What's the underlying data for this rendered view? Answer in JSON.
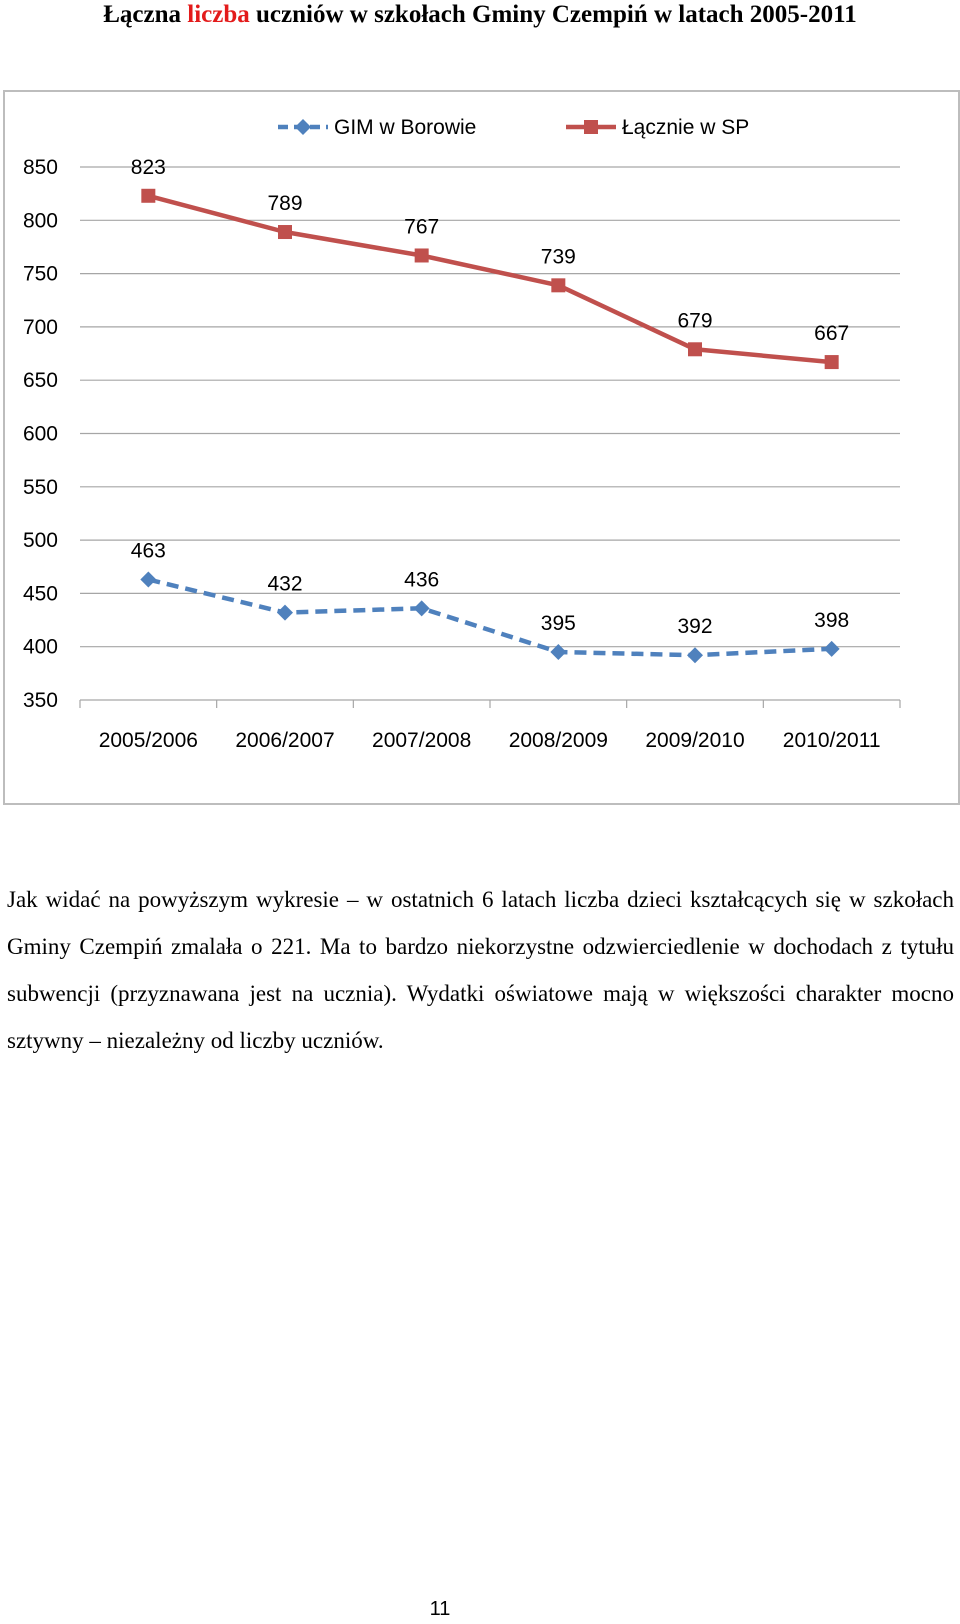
{
  "document": {
    "title_parts": [
      "Łączna ",
      "liczba",
      " uczniów w szkołach Gminy Czempiń w latach 2005-2011"
    ],
    "highlight_color": "#e31b1b",
    "paragraph": "Jak widać na powyższym wykresie – w ostatnich 6 latach liczba dzieci kształcących się w szkołach Gminy Czempiń zmalała o 221. Ma to bardzo niekorzystne odzwierciedlenie w dochodach z tytułu subwencji (przyznawana jest na ucznia). Wydatki oświatowe mają w większości charakter mocno sztywny – niezależny od liczby uczniów.",
    "page_number": "11"
  },
  "chart_data": {
    "type": "line",
    "title": "",
    "xlabel": "",
    "ylabel": "",
    "categories": [
      "2005/2006",
      "2006/2007",
      "2007/2008",
      "2008/2009",
      "2009/2010",
      "2010/2011"
    ],
    "ylim": [
      350,
      850
    ],
    "yticks": [
      350,
      400,
      450,
      500,
      550,
      600,
      650,
      700,
      750,
      800,
      850
    ],
    "grid": true,
    "legend_position": "top",
    "series": [
      {
        "name": "GIM w Borowie",
        "values": [
          463,
          432,
          436,
          395,
          392,
          398
        ],
        "labels": [
          "463",
          "432",
          "436",
          "395",
          "392",
          "398"
        ],
        "color": "#4f81bd",
        "line_style": "dashed",
        "marker": "diamond"
      },
      {
        "name": "Łącznie w SP",
        "values": [
          823,
          789,
          767,
          739,
          679,
          667
        ],
        "labels": [
          "823",
          "789",
          "767",
          "739",
          "679",
          "667"
        ],
        "color": "#c0504d",
        "line_style": "solid",
        "marker": "square"
      }
    ]
  }
}
